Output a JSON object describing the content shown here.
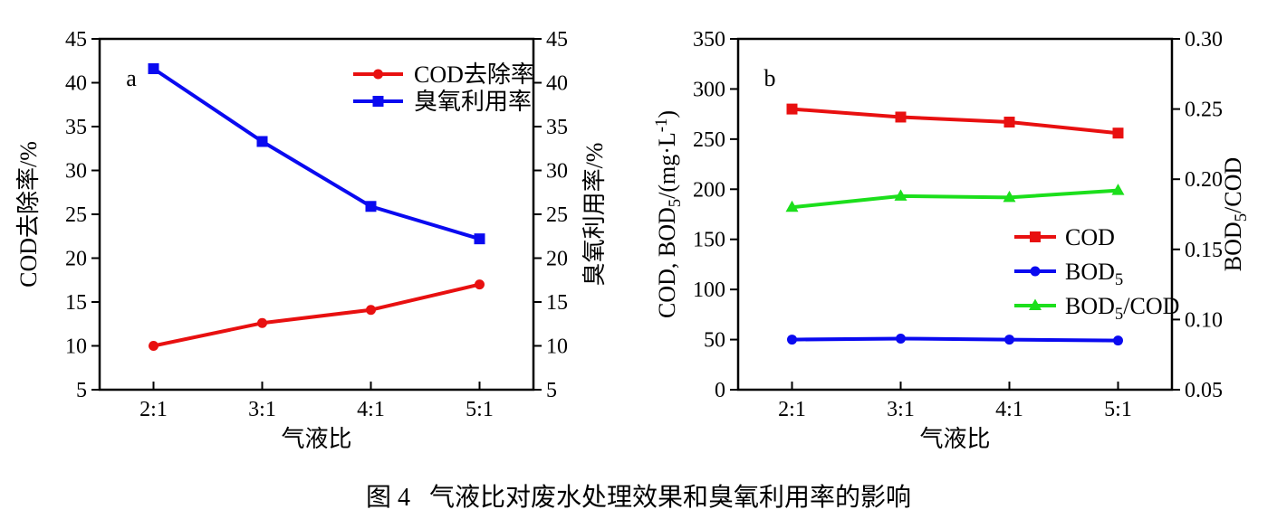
{
  "caption": "图 4   气液比对废水处理效果和臭氧利用率的影响",
  "colors": {
    "red": "#e81010",
    "blue": "#0a0af0",
    "green": "#1cdf1c",
    "axis": "#000000"
  },
  "chart_data": [
    {
      "id": "a",
      "type": "line",
      "panel_label": "a",
      "title": "",
      "xlabel": "气液比",
      "categories": [
        "2:1",
        "3:1",
        "4:1",
        "5:1"
      ],
      "left_axis": {
        "title": "COD去除率/%",
        "min": 5,
        "max": 45,
        "ticks": [
          "5",
          "10",
          "15",
          "20",
          "25",
          "30",
          "35",
          "40",
          "45"
        ]
      },
      "right_axis": {
        "title": "臭氧利用率/%",
        "min": 5,
        "max": 45,
        "ticks": [
          "5",
          "10",
          "15",
          "20",
          "25",
          "30",
          "35",
          "40",
          "45"
        ]
      },
      "grid": false,
      "legend_position": "upper right",
      "series": [
        {
          "name": "COD去除率",
          "color_key": "red",
          "marker": "circle",
          "axis": "left",
          "values": [
            10.0,
            12.6,
            14.1,
            17.0
          ]
        },
        {
          "name": "臭氧利用率",
          "color_key": "blue",
          "marker": "square",
          "axis": "right",
          "values": [
            41.6,
            33.3,
            25.9,
            22.2
          ]
        }
      ]
    },
    {
      "id": "b",
      "type": "line",
      "panel_label": "b",
      "title": "",
      "xlabel": "气液比",
      "categories": [
        "2:1",
        "3:1",
        "4:1",
        "5:1"
      ],
      "left_axis": {
        "title": "COD, BOD_{5}/(mg·L^{-1})",
        "min": 0,
        "max": 350,
        "ticks": [
          "0",
          "50",
          "100",
          "150",
          "200",
          "250",
          "300",
          "350"
        ]
      },
      "right_axis": {
        "title": "BOD_{5}/COD",
        "min": 0.05,
        "max": 0.3,
        "ticks": [
          "0.05",
          "0.10",
          "0.15",
          "0.20",
          "0.25",
          "0.30"
        ]
      },
      "grid": false,
      "legend_position": "middle right",
      "series": [
        {
          "name": "COD",
          "color_key": "red",
          "marker": "square",
          "axis": "left",
          "values": [
            280,
            272,
            267,
            256
          ]
        },
        {
          "name": "BOD_{5}",
          "color_key": "blue",
          "marker": "circle",
          "axis": "left",
          "values": [
            50,
            51,
            50,
            49
          ]
        },
        {
          "name": "BOD_{5}/COD",
          "color_key": "green",
          "marker": "triangle",
          "axis": "right",
          "values": [
            0.18,
            0.188,
            0.187,
            0.192
          ]
        }
      ]
    }
  ]
}
